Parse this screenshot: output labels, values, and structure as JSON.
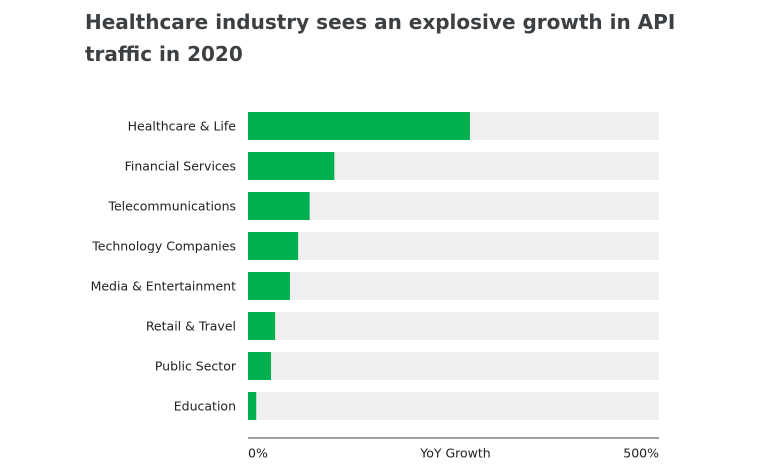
{
  "chart_data": {
    "type": "bar",
    "orientation": "horizontal",
    "title": "Healthcare industry sees an explosive growth in API traffic in 2020",
    "categories": [
      "Healthcare & Life",
      "Financial Services",
      "Telecommunications",
      "Technology Companies",
      "Media & Entertainment",
      "Retail & Travel",
      "Public Sector",
      "Education"
    ],
    "values": [
      270,
      105,
      75,
      61,
      51,
      33,
      28,
      10
    ],
    "xlabel": "YoY Growth",
    "xlim": [
      0,
      500
    ],
    "x_tick_labels": [
      "0%",
      "500%"
    ],
    "grid": false,
    "colors": {
      "bar": "#00b04f",
      "track": "#efefef",
      "axis": "#3c4043"
    }
  }
}
